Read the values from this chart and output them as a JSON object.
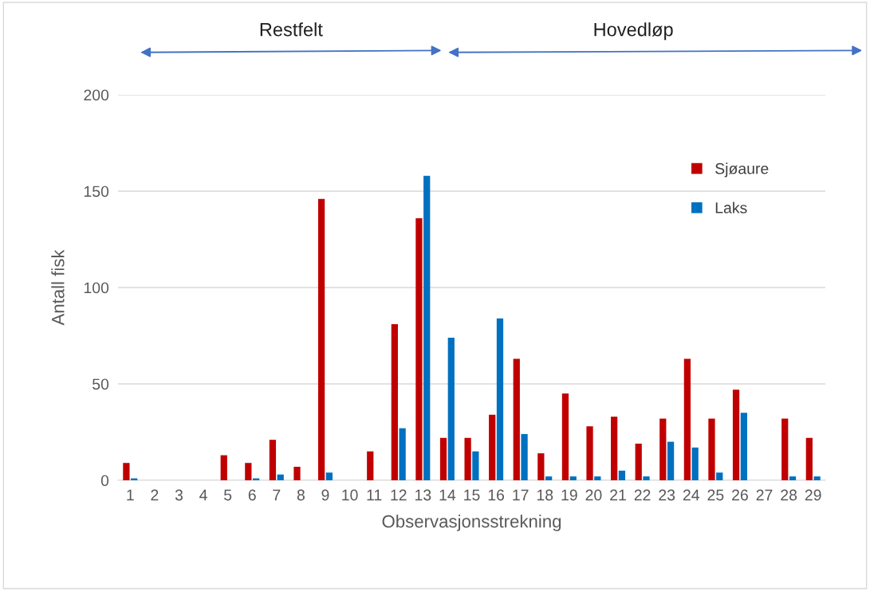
{
  "chart_data": {
    "type": "bar",
    "xlabel": "Observasjonsstrekning",
    "ylabel": "Antall fisk",
    "categories": [
      "1",
      "2",
      "3",
      "4",
      "5",
      "6",
      "7",
      "8",
      "9",
      "10",
      "11",
      "12",
      "13",
      "14",
      "15",
      "16",
      "17",
      "18",
      "19",
      "20",
      "21",
      "22",
      "23",
      "24",
      "25",
      "26",
      "27",
      "28",
      "29"
    ],
    "series": [
      {
        "name": "Sjøaure",
        "color": "#c00000",
        "values": [
          9,
          0,
          0,
          0,
          13,
          9,
          21,
          7,
          146,
          0,
          15,
          81,
          136,
          22,
          22,
          34,
          63,
          14,
          45,
          28,
          33,
          19,
          32,
          63,
          32,
          47,
          0,
          32,
          22
        ]
      },
      {
        "name": "Laks",
        "color": "#0070c0",
        "values": [
          1,
          0,
          0,
          0,
          0,
          1,
          3,
          0,
          4,
          0,
          0,
          27,
          158,
          74,
          15,
          84,
          24,
          2,
          2,
          2,
          5,
          2,
          20,
          17,
          4,
          35,
          0,
          2,
          2
        ]
      }
    ],
    "ylim": [
      0,
      200
    ],
    "yticks": [
      0,
      50,
      100,
      150,
      200
    ],
    "grid": "y",
    "legend": "top right",
    "annotations": [
      "Restfelt",
      "Hovedløp"
    ]
  }
}
